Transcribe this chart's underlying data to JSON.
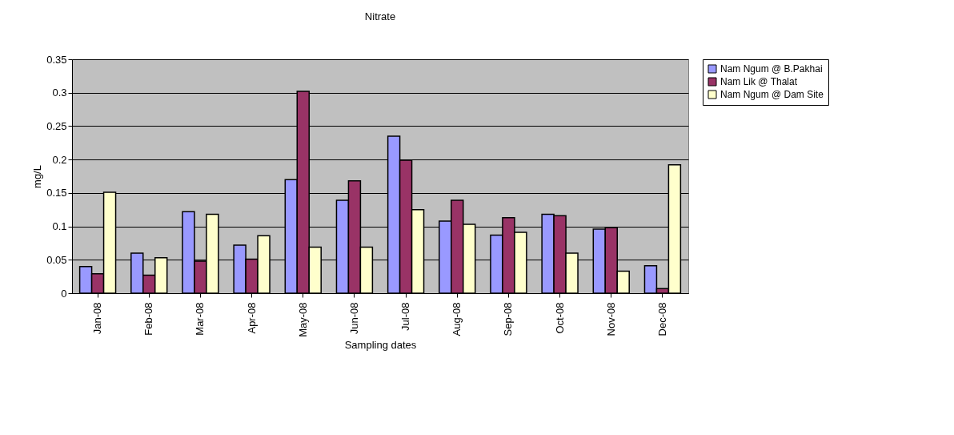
{
  "chart_data": {
    "type": "bar",
    "title": "Nitrate",
    "xlabel": "Sampling dates",
    "ylabel": "mg/L",
    "categories": [
      "Jan-08",
      "Feb-08",
      "Mar-08",
      "Apr-08",
      "May-08",
      "Jun-08",
      "Jul-08",
      "Aug-08",
      "Sep-08",
      "Oct-08",
      "Nov-08",
      "Dec-08"
    ],
    "series": [
      {
        "name": "Nam Ngum @ B.Pakhai",
        "color": "#9999ff",
        "values": [
          0.04,
          0.06,
          0.122,
          0.072,
          0.17,
          0.139,
          0.235,
          0.108,
          0.087,
          0.118,
          0.096,
          0.041
        ]
      },
      {
        "name": "Nam Lik @ Thalat",
        "color": "#993366",
        "values": [
          0.029,
          0.027,
          0.048,
          0.051,
          0.302,
          0.168,
          0.199,
          0.139,
          0.113,
          0.116,
          0.098,
          0.007
        ]
      },
      {
        "name": "Nam Ngum @ Dam Site",
        "color": "#ffffcc",
        "values": [
          0.151,
          0.053,
          0.118,
          0.086,
          0.069,
          0.069,
          0.125,
          0.103,
          0.091,
          0.06,
          0.033,
          0.192
        ]
      }
    ],
    "ylim": [
      0,
      0.35
    ],
    "yticks": [
      0,
      0.05,
      0.1,
      0.15,
      0.2,
      0.25,
      0.3,
      0.35
    ],
    "grid": "y",
    "legend": "right"
  }
}
